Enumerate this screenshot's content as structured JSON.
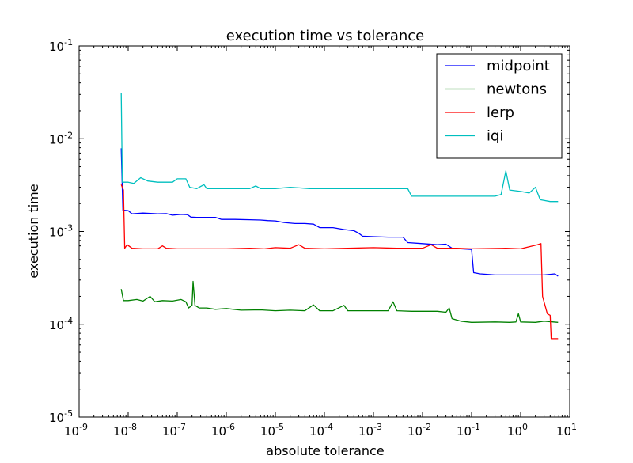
{
  "chart_data": {
    "type": "line",
    "title": "execution time vs tolerance",
    "xlabel": "absolute tolerance",
    "ylabel": "execution time",
    "xscale": "log",
    "yscale": "log",
    "xlim": [
      1e-09,
      10
    ],
    "ylim": [
      1e-05,
      0.1
    ],
    "x_ticks": [
      {
        "base": "10",
        "exp": "-9"
      },
      {
        "base": "10",
        "exp": "-8"
      },
      {
        "base": "10",
        "exp": "-7"
      },
      {
        "base": "10",
        "exp": "-6"
      },
      {
        "base": "10",
        "exp": "-5"
      },
      {
        "base": "10",
        "exp": "-4"
      },
      {
        "base": "10",
        "exp": "-3"
      },
      {
        "base": "10",
        "exp": "-2"
      },
      {
        "base": "10",
        "exp": "-1"
      },
      {
        "base": "10",
        "exp": "0"
      },
      {
        "base": "10",
        "exp": "1"
      }
    ],
    "y_ticks": [
      {
        "base": "10",
        "exp": "-5"
      },
      {
        "base": "10",
        "exp": "-4"
      },
      {
        "base": "10",
        "exp": "-3"
      },
      {
        "base": "10",
        "exp": "-2"
      },
      {
        "base": "10",
        "exp": "-1"
      }
    ],
    "grid": false,
    "legend_position": "top-right",
    "series": [
      {
        "name": "midpoint",
        "color": "#0000ff",
        "points": [
          [
            7.2e-09,
            0.0079
          ],
          [
            7.8e-09,
            0.0017
          ],
          [
            1e-08,
            0.00168
          ],
          [
            1.2e-08,
            0.00155
          ],
          [
            2e-08,
            0.00158
          ],
          [
            4e-08,
            0.00155
          ],
          [
            6e-08,
            0.00156
          ],
          [
            8e-08,
            0.0015
          ],
          [
            1.2e-07,
            0.00153
          ],
          [
            1.6e-07,
            0.00152
          ],
          [
            1.9e-07,
            0.00143
          ],
          [
            2.5e-07,
            0.00142
          ],
          [
            4e-07,
            0.00142
          ],
          [
            6e-07,
            0.00142
          ],
          [
            8e-07,
            0.00135
          ],
          [
            1.5e-06,
            0.00135
          ],
          [
            3e-06,
            0.00134
          ],
          [
            5e-06,
            0.00133
          ],
          [
            7e-06,
            0.00131
          ],
          [
            1e-05,
            0.0013
          ],
          [
            1.5e-05,
            0.00125
          ],
          [
            2.5e-05,
            0.00122
          ],
          [
            4e-05,
            0.00122
          ],
          [
            6e-05,
            0.0012
          ],
          [
            8e-05,
            0.0011
          ],
          [
            0.00015,
            0.0011
          ],
          [
            0.00025,
            0.00105
          ],
          [
            0.0004,
            0.00102
          ],
          [
            0.0005,
            0.00096
          ],
          [
            0.0006,
            0.00089
          ],
          [
            0.001,
            0.00088
          ],
          [
            0.002,
            0.00087
          ],
          [
            0.004,
            0.00087
          ],
          [
            0.005,
            0.00076
          ],
          [
            0.01,
            0.00074
          ],
          [
            0.02,
            0.00072
          ],
          [
            0.03,
            0.00073
          ],
          [
            0.04,
            0.00066
          ],
          [
            0.06,
            0.00065
          ],
          [
            0.1,
            0.00064
          ],
          [
            0.11,
            0.00036
          ],
          [
            0.15,
            0.00035
          ],
          [
            0.3,
            0.00034
          ],
          [
            1.0,
            0.00034
          ],
          [
            3.0,
            0.00034
          ],
          [
            5.0,
            0.00035
          ],
          [
            5.8,
            0.00033
          ]
        ]
      },
      {
        "name": "newtons",
        "color": "#008000",
        "points": [
          [
            7.2e-09,
            0.00024
          ],
          [
            8e-09,
            0.00018
          ],
          [
            1e-08,
            0.00018
          ],
          [
            1.5e-08,
            0.000185
          ],
          [
            2e-08,
            0.000178
          ],
          [
            2.8e-08,
            0.0002
          ],
          [
            3.5e-08,
            0.000175
          ],
          [
            5e-08,
            0.00018
          ],
          [
            8e-08,
            0.000178
          ],
          [
            1.2e-07,
            0.000185
          ],
          [
            1.5e-07,
            0.000175
          ],
          [
            1.7e-07,
            0.00015
          ],
          [
            2e-07,
            0.00016
          ],
          [
            2.1e-07,
            0.00029
          ],
          [
            2.3e-07,
            0.00016
          ],
          [
            2.8e-07,
            0.00015
          ],
          [
            4e-07,
            0.00015
          ],
          [
            6e-07,
            0.000145
          ],
          [
            1e-06,
            0.000148
          ],
          [
            2e-06,
            0.000142
          ],
          [
            5e-06,
            0.000143
          ],
          [
            1e-05,
            0.00014
          ],
          [
            2e-05,
            0.000142
          ],
          [
            4e-05,
            0.00014
          ],
          [
            6e-05,
            0.000162
          ],
          [
            8e-05,
            0.00014
          ],
          [
            0.00015,
            0.00014
          ],
          [
            0.00025,
            0.00016
          ],
          [
            0.0003,
            0.00014
          ],
          [
            0.0006,
            0.00014
          ],
          [
            0.001,
            0.00014
          ],
          [
            0.002,
            0.00014
          ],
          [
            0.0025,
            0.000175
          ],
          [
            0.003,
            0.00014
          ],
          [
            0.006,
            0.000138
          ],
          [
            0.01,
            0.000138
          ],
          [
            0.02,
            0.000138
          ],
          [
            0.03,
            0.000135
          ],
          [
            0.035,
            0.00015
          ],
          [
            0.04,
            0.000115
          ],
          [
            0.06,
            0.000108
          ],
          [
            0.1,
            0.000105
          ],
          [
            0.3,
            0.000106
          ],
          [
            0.6,
            0.000105
          ],
          [
            0.8,
            0.000106
          ],
          [
            0.9,
            0.00013
          ],
          [
            1.0,
            0.000106
          ],
          [
            2.0,
            0.000105
          ],
          [
            3.0,
            0.000108
          ],
          [
            5.8,
            0.000105
          ]
        ]
      },
      {
        "name": "lerp",
        "color": "#ff0000",
        "points": [
          [
            7.2e-09,
            0.0032
          ],
          [
            8e-09,
            0.0028
          ],
          [
            8.5e-09,
            0.00066
          ],
          [
            9.5e-09,
            0.00072
          ],
          [
            1.2e-08,
            0.00066
          ],
          [
            2e-08,
            0.00065
          ],
          [
            4e-08,
            0.00065
          ],
          [
            5e-08,
            0.0007
          ],
          [
            6e-08,
            0.00066
          ],
          [
            1e-07,
            0.00065
          ],
          [
            3e-07,
            0.00065
          ],
          [
            1e-06,
            0.00065
          ],
          [
            3e-06,
            0.00066
          ],
          [
            6e-06,
            0.00065
          ],
          [
            1e-05,
            0.00067
          ],
          [
            2e-05,
            0.00066
          ],
          [
            3e-05,
            0.00072
          ],
          [
            4e-05,
            0.00066
          ],
          [
            0.0001,
            0.00065
          ],
          [
            0.0003,
            0.00066
          ],
          [
            0.001,
            0.00067
          ],
          [
            0.003,
            0.00066
          ],
          [
            0.01,
            0.00066
          ],
          [
            0.015,
            0.00072
          ],
          [
            0.02,
            0.00066
          ],
          [
            0.05,
            0.00066
          ],
          [
            0.1,
            0.00065
          ],
          [
            0.5,
            0.00066
          ],
          [
            1.0,
            0.00065
          ],
          [
            2.2,
            0.00072
          ],
          [
            2.6,
            0.00074
          ],
          [
            2.8,
            0.0002
          ],
          [
            3.5,
            0.00013
          ],
          [
            4.0,
            0.000125
          ],
          [
            4.2,
            7e-05
          ],
          [
            5.8,
            7e-05
          ]
        ]
      },
      {
        "name": "iqi",
        "color": "#00bfbf",
        "points": [
          [
            7.2e-09,
            0.031
          ],
          [
            7.6e-09,
            0.0034
          ],
          [
            1e-08,
            0.0034
          ],
          [
            1.3e-08,
            0.0033
          ],
          [
            1.8e-08,
            0.0038
          ],
          [
            2.5e-08,
            0.0035
          ],
          [
            4e-08,
            0.0034
          ],
          [
            8e-08,
            0.0034
          ],
          [
            1e-07,
            0.0037
          ],
          [
            1.5e-07,
            0.0037
          ],
          [
            1.8e-07,
            0.003
          ],
          [
            2.5e-07,
            0.0029
          ],
          [
            3.5e-07,
            0.0032
          ],
          [
            4e-07,
            0.0029
          ],
          [
            1e-06,
            0.0029
          ],
          [
            3e-06,
            0.0029
          ],
          [
            4e-06,
            0.0031
          ],
          [
            5e-06,
            0.0029
          ],
          [
            1e-05,
            0.0029
          ],
          [
            2e-05,
            0.003
          ],
          [
            5e-05,
            0.0029
          ],
          [
            0.0001,
            0.0029
          ],
          [
            0.0003,
            0.0029
          ],
          [
            0.001,
            0.0029
          ],
          [
            0.003,
            0.0029
          ],
          [
            0.005,
            0.0029
          ],
          [
            0.006,
            0.0024
          ],
          [
            0.01,
            0.0024
          ],
          [
            0.03,
            0.0024
          ],
          [
            0.1,
            0.0024
          ],
          [
            0.3,
            0.0024
          ],
          [
            0.4,
            0.0025
          ],
          [
            0.5,
            0.0045
          ],
          [
            0.6,
            0.0028
          ],
          [
            1.0,
            0.0027
          ],
          [
            1.5,
            0.0026
          ],
          [
            2.0,
            0.003
          ],
          [
            2.5,
            0.0022
          ],
          [
            4.0,
            0.0021
          ],
          [
            5.8,
            0.0021
          ]
        ]
      }
    ]
  }
}
